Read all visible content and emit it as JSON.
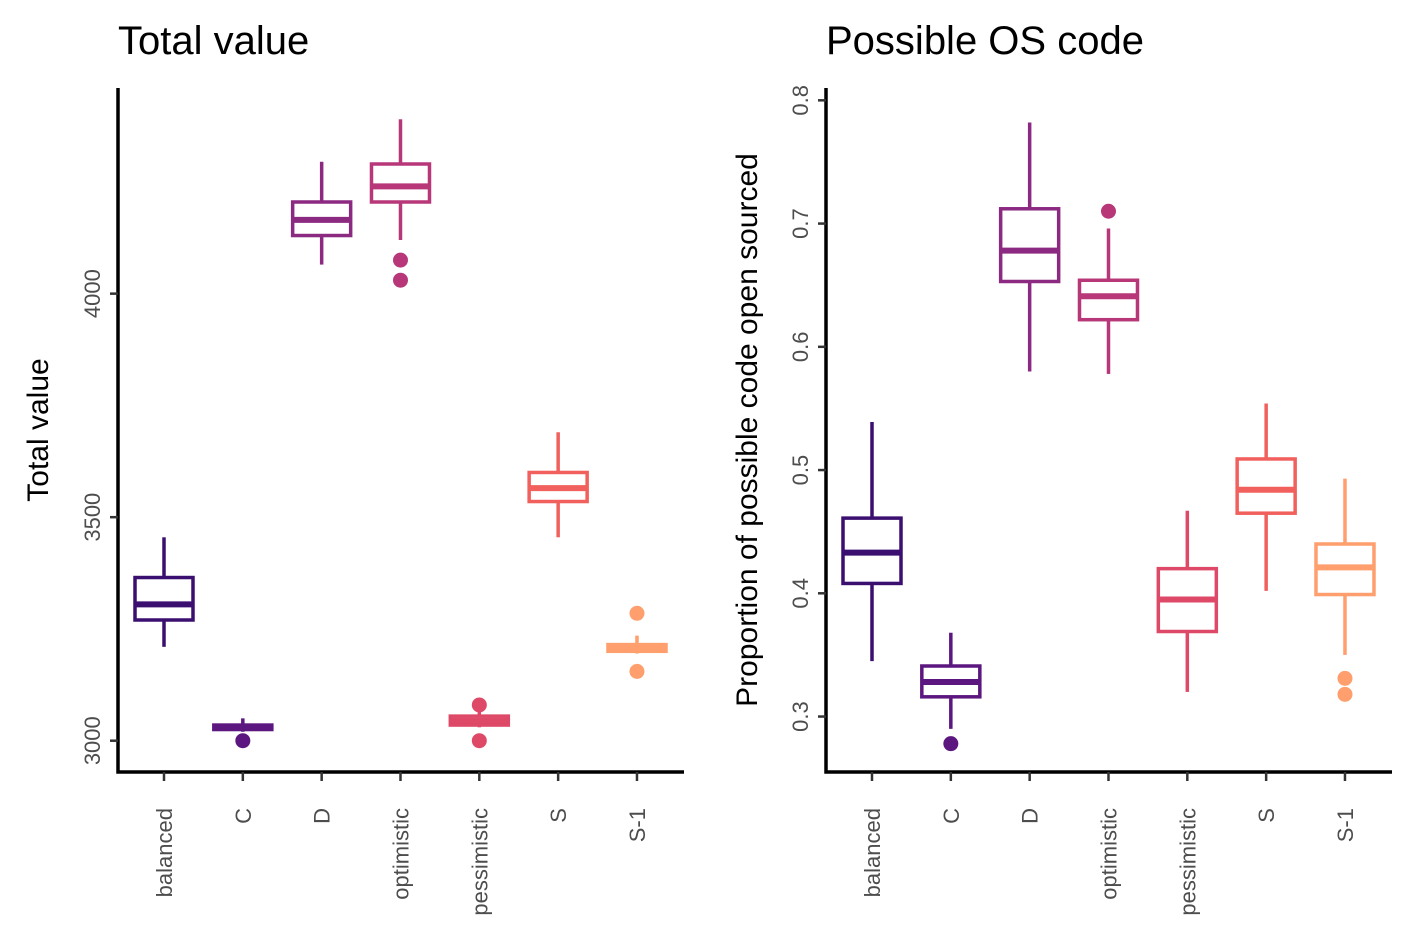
{
  "chart_data": [
    {
      "type": "boxplot",
      "title": "Total value",
      "xlabel": "",
      "ylabel": "Total value",
      "ylim": [
        2930,
        4460
      ],
      "yticks": [
        "3000",
        "3500",
        "4000"
      ],
      "categories": [
        "balanced",
        "C",
        "D",
        "optimistic",
        "pessimistic",
        "S",
        "S-1"
      ],
      "colors": [
        "#3b0f70",
        "#5c167f",
        "#8c2981",
        "#b73779",
        "#de4968",
        "#f1605d",
        "#fe9f6d"
      ],
      "grid": false,
      "legend": "none",
      "boxes": [
        {
          "category": "balanced",
          "whisker_low": 3210,
          "q1": 3270,
          "median": 3305,
          "q3": 3365,
          "whisker_high": 3455,
          "outliers": []
        },
        {
          "category": "C",
          "whisker_low": 3020,
          "q1": 3025,
          "median": 3030,
          "q3": 3035,
          "whisker_high": 3050,
          "outliers": [
            3000
          ]
        },
        {
          "category": "D",
          "whisker_low": 4065,
          "q1": 4130,
          "median": 4165,
          "q3": 4205,
          "whisker_high": 4295,
          "outliers": []
        },
        {
          "category": "optimistic",
          "whisker_low": 4120,
          "q1": 4205,
          "median": 4240,
          "q3": 4290,
          "whisker_high": 4390,
          "outliers": [
            4075,
            4030
          ]
        },
        {
          "category": "pessimistic",
          "whisker_low": 3030,
          "q1": 3035,
          "median": 3045,
          "q3": 3055,
          "whisker_high": 3070,
          "outliers": [
            3080,
            3000
          ]
        },
        {
          "category": "S",
          "whisker_low": 3455,
          "q1": 3535,
          "median": 3565,
          "q3": 3600,
          "whisker_high": 3690,
          "outliers": []
        },
        {
          "category": "S-1",
          "whisker_low": 3195,
          "q1": 3200,
          "median": 3205,
          "q3": 3215,
          "whisker_high": 3235,
          "outliers": [
            3285,
            3155
          ]
        }
      ]
    },
    {
      "type": "boxplot",
      "title": "Possible OS code",
      "xlabel": "",
      "ylabel": "Proportion of possible code open sourced",
      "ylim": [
        0.255,
        0.81
      ],
      "yticks": [
        "0.3",
        "0.4",
        "0.5",
        "0.6",
        "0.7",
        "0.8"
      ],
      "categories": [
        "balanced",
        "C",
        "D",
        "optimistic",
        "pessimistic",
        "S",
        "S-1"
      ],
      "colors": [
        "#3b0f70",
        "#5c167f",
        "#8c2981",
        "#b73779",
        "#de4968",
        "#f1605d",
        "#fe9f6d"
      ],
      "grid": false,
      "legend": "none",
      "boxes": [
        {
          "category": "balanced",
          "whisker_low": 0.345,
          "q1": 0.408,
          "median": 0.433,
          "q3": 0.461,
          "whisker_high": 0.539,
          "outliers": []
        },
        {
          "category": "C",
          "whisker_low": 0.29,
          "q1": 0.316,
          "median": 0.328,
          "q3": 0.341,
          "whisker_high": 0.368,
          "outliers": [
            0.278
          ]
        },
        {
          "category": "D",
          "whisker_low": 0.58,
          "q1": 0.653,
          "median": 0.678,
          "q3": 0.712,
          "whisker_high": 0.782,
          "outliers": []
        },
        {
          "category": "optimistic",
          "whisker_low": 0.578,
          "q1": 0.622,
          "median": 0.641,
          "q3": 0.654,
          "whisker_high": 0.696,
          "outliers": [
            0.71
          ]
        },
        {
          "category": "pessimistic",
          "whisker_low": 0.32,
          "q1": 0.369,
          "median": 0.395,
          "q3": 0.42,
          "whisker_high": 0.467,
          "outliers": []
        },
        {
          "category": "S",
          "whisker_low": 0.402,
          "q1": 0.465,
          "median": 0.484,
          "q3": 0.509,
          "whisker_high": 0.554,
          "outliers": []
        },
        {
          "category": "S-1",
          "whisker_low": 0.35,
          "q1": 0.399,
          "median": 0.421,
          "q3": 0.44,
          "whisker_high": 0.493,
          "outliers": [
            0.331,
            0.318
          ]
        }
      ]
    }
  ]
}
